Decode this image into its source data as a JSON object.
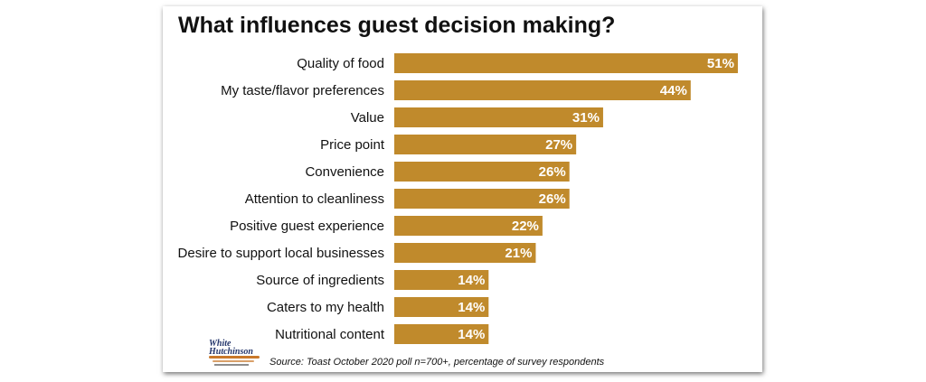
{
  "chart_data": {
    "type": "bar",
    "orientation": "horizontal",
    "title": "What influences guest decision making?",
    "categories": [
      "Quality of food",
      "My taste/flavor preferences",
      "Value",
      "Price point",
      "Convenience",
      "Attention to cleanliness",
      "Positive guest experience",
      "Desire to support local businesses",
      "Source of ingredients",
      "Caters to my health",
      "Nutritional content"
    ],
    "values": [
      51,
      44,
      31,
      27,
      26,
      26,
      22,
      21,
      14,
      14,
      14
    ],
    "value_labels": [
      "51%",
      "44%",
      "31%",
      "27%",
      "26%",
      "26%",
      "22%",
      "21%",
      "14%",
      "14%",
      "14%"
    ],
    "unit": "%",
    "bar_color": "#c08a2c",
    "xlabel": "",
    "ylabel": "",
    "grid": false,
    "legend": false
  },
  "source_note": "Source: Toast October 2020 poll n=700+, percentage of survey respondents",
  "logo": {
    "icon": "white-hutchinson-logo",
    "text_line1": "White",
    "text_line2": "Hutchinson"
  }
}
